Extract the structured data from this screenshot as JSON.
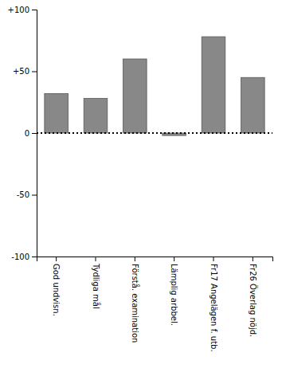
{
  "chart_data": {
    "type": "bar",
    "categories": [
      "God undvisn.",
      "Tydliga mål",
      "Förstå. examination",
      "Lämplig arbbel.",
      "Fr17 Angelägen f. utb.",
      "Fr26 Överlag nöjd."
    ],
    "values": [
      32,
      28,
      60,
      -2,
      78,
      45
    ],
    "color": "#888888",
    "ylim": [
      -100,
      100
    ],
    "yticks": [
      -100,
      -50,
      0,
      {
        "value": 50,
        "label": "+50"
      },
      {
        "value": 100,
        "label": "+100"
      }
    ],
    "grid": false
  }
}
